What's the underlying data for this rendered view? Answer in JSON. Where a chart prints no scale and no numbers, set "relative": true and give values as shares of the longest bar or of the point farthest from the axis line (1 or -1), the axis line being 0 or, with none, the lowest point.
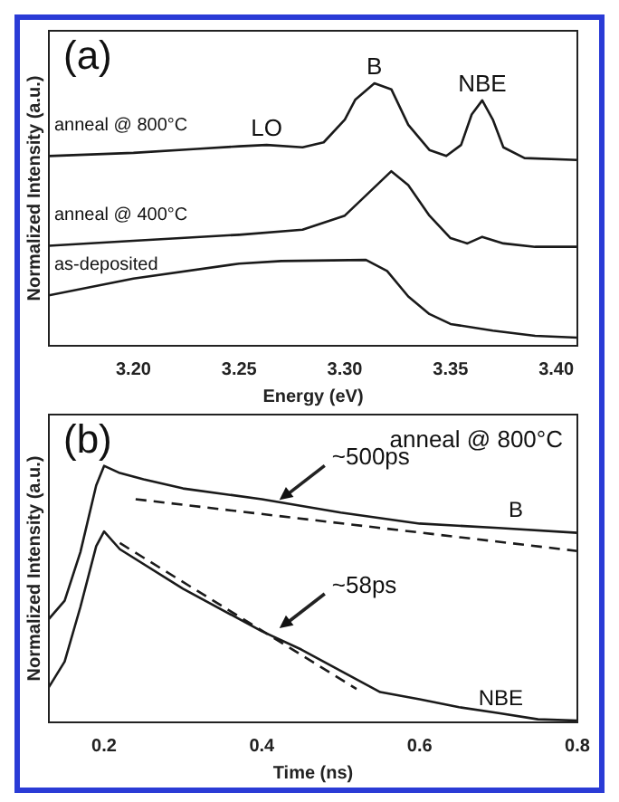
{
  "chart_data": [
    {
      "type": "line",
      "relative": true,
      "xlabel": "Energy (eV)",
      "ylabel": "Normalized Intensity (a.u.)",
      "xlim": [
        3.16,
        3.41
      ],
      "xticks": [
        {
          "value": 3.2,
          "label": "3.20"
        },
        3.25,
        {
          "value": 3.3,
          "label": "3.30"
        },
        3.35,
        {
          "value": 3.4,
          "label": "3.40"
        }
      ],
      "grid": false,
      "legend": false,
      "marker": "none",
      "line_style": "solid",
      "annotations": [
        "(a)",
        {
          "text": "LO",
          "x": 3.263,
          "y": 0.765
        },
        {
          "text": "B",
          "x": 3.314,
          "y": 1
        },
        {
          "text": "NBE",
          "x": 3.365,
          "y": 0.935
        }
      ],
      "series": [
        {
          "name": "anneal @ 800°C",
          "color": "#1a1a1a",
          "x": [
            3.16,
            3.2,
            3.23,
            3.25,
            3.263,
            3.28,
            3.29,
            3.3,
            3.305,
            3.314,
            3.322,
            3.33,
            3.34,
            3.348,
            3.355,
            3.36,
            3.365,
            3.37,
            3.375,
            3.385,
            3.41
          ],
          "values": [
            0.723,
            0.735,
            0.75,
            0.76,
            0.765,
            0.756,
            0.775,
            0.862,
            0.938,
            1,
            0.977,
            0.842,
            0.746,
            0.723,
            0.765,
            0.881,
            0.935,
            0.862,
            0.756,
            0.715,
            0.708
          ]
        },
        {
          "name": "anneal @ 400°C",
          "color": "#1a1a1a",
          "x": [
            3.16,
            3.2,
            3.25,
            3.28,
            3.3,
            3.31,
            3.322,
            3.33,
            3.34,
            3.35,
            3.358,
            3.365,
            3.375,
            3.39,
            3.41
          ],
          "values": [
            0.381,
            0.4,
            0.423,
            0.442,
            0.496,
            0.573,
            0.665,
            0.612,
            0.496,
            0.41,
            0.39,
            0.415,
            0.39,
            0.377,
            0.377
          ]
        },
        {
          "name": "as-deposited",
          "color": "#1a1a1a",
          "x": [
            3.16,
            3.2,
            3.25,
            3.27,
            3.31,
            3.32,
            3.33,
            3.34,
            3.35,
            3.37,
            3.39,
            3.41
          ],
          "values": [
            0.192,
            0.256,
            0.313,
            0.323,
            0.327,
            0.285,
            0.188,
            0.121,
            0.083,
            0.058,
            0.038,
            0.031
          ]
        }
      ]
    },
    {
      "type": "line",
      "relative": true,
      "xlabel": "Time (ns)",
      "ylabel": "Normalized Intensity (a.u.)",
      "xlim": [
        0.13,
        0.8
      ],
      "xticks": [
        0.2,
        0.4,
        0.6,
        0.8
      ],
      "grid": false,
      "legend": false,
      "marker": "none",
      "line_style": "solid",
      "annotations": [
        "(b)",
        "anneal @ 800°C",
        {
          "text": "~500ps",
          "x": 0.42,
          "y": 0.86
        },
        {
          "text": "~58ps",
          "x": 0.42,
          "y": 0.36
        }
      ],
      "series": [
        {
          "name": "B",
          "color": "#1a1a1a",
          "x": [
            0.13,
            0.15,
            0.17,
            0.19,
            0.2,
            0.22,
            0.25,
            0.3,
            0.4,
            0.5,
            0.6,
            0.7,
            0.8
          ],
          "values": [
            0.403,
            0.474,
            0.664,
            0.924,
            1,
            0.972,
            0.948,
            0.912,
            0.87,
            0.818,
            0.775,
            0.758,
            0.739
          ]
        },
        {
          "type": "line",
          "line_style": "dashed",
          "color": "#1a1a1a",
          "x": [
            0.24,
            0.8
          ],
          "values": [
            0.87,
            0.668
          ]
        },
        {
          "name": "NBE",
          "color": "#1a1a1a",
          "x": [
            0.13,
            0.15,
            0.17,
            0.19,
            0.2,
            0.22,
            0.3,
            0.4,
            0.45,
            0.5,
            0.55,
            0.6,
            0.65,
            0.7,
            0.75,
            0.8
          ],
          "values": [
            0.137,
            0.237,
            0.45,
            0.687,
            0.744,
            0.675,
            0.521,
            0.355,
            0.284,
            0.201,
            0.118,
            0.09,
            0.059,
            0.036,
            0.012,
            0.007
          ]
        },
        {
          "type": "line",
          "line_style": "dashed",
          "color": "#1a1a1a",
          "x": [
            0.22,
            0.52
          ],
          "values": [
            0.699,
            0.13
          ]
        }
      ]
    }
  ]
}
